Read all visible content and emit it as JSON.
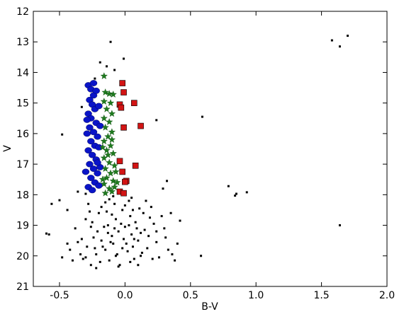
{
  "chart_data": {
    "type": "scatter",
    "title": "",
    "xlabel": "B-V",
    "ylabel": "V",
    "xlim": [
      -0.7,
      2.0
    ],
    "ylim": [
      21,
      12
    ],
    "y_inverted": true,
    "grid": false,
    "legend": "none",
    "xticks": [
      "-0.5",
      "0.0",
      "0.5",
      "1.0",
      "1.5",
      "2.0"
    ],
    "xtick_values": [
      -0.5,
      0.0,
      0.5,
      1.0,
      1.5,
      2.0
    ],
    "yticks": [
      "12",
      "13",
      "14",
      "15",
      "16",
      "17",
      "18",
      "19",
      "20",
      "21"
    ],
    "ytick_values": [
      12,
      13,
      14,
      15,
      16,
      17,
      18,
      19,
      20,
      21
    ],
    "series": [
      {
        "marker": "square-small",
        "color": "#000000",
        "points": [
          [
            -0.19,
            13.67
          ],
          [
            -0.11,
            13.0
          ],
          [
            -0.01,
            13.55
          ],
          [
            -0.08,
            13.92
          ],
          [
            -0.14,
            13.8
          ],
          [
            -0.23,
            14.2
          ],
          [
            -0.27,
            14.5
          ],
          [
            -0.33,
            15.13
          ],
          [
            -0.48,
            16.03
          ],
          [
            -0.28,
            17.72
          ],
          [
            -0.36,
            17.9
          ],
          [
            -0.3,
            17.97
          ],
          [
            0.24,
            15.56
          ],
          [
            0.59,
            15.45
          ],
          [
            0.32,
            17.55
          ],
          [
            0.29,
            17.8
          ],
          [
            0.79,
            17.72
          ],
          [
            0.84,
            18.03
          ],
          [
            0.93,
            17.92
          ],
          [
            0.85,
            17.97
          ],
          [
            1.58,
            12.95
          ],
          [
            1.64,
            13.15
          ],
          [
            1.7,
            12.8
          ],
          [
            1.64,
            19.0
          ],
          [
            0.58,
            20.0
          ],
          [
            -0.56,
            18.3
          ],
          [
            -0.5,
            18.18
          ],
          [
            -0.44,
            18.5
          ],
          [
            -0.58,
            19.3
          ],
          [
            -0.44,
            19.6
          ],
          [
            -0.48,
            20.05
          ],
          [
            -0.4,
            20.15
          ],
          [
            -0.34,
            19.95
          ],
          [
            -0.32,
            20.1
          ],
          [
            -0.6,
            19.27
          ],
          [
            -0.28,
            18.3
          ],
          [
            -0.3,
            18.8
          ],
          [
            -0.26,
            19.05
          ],
          [
            -0.33,
            19.45
          ],
          [
            -0.22,
            19.95
          ],
          [
            -0.26,
            20.3
          ],
          [
            -0.3,
            20.05
          ],
          [
            -0.18,
            18.4
          ],
          [
            -0.21,
            19.2
          ],
          [
            -0.17,
            19.7
          ],
          [
            -0.12,
            18.15
          ],
          [
            -0.14,
            18.55
          ],
          [
            -0.13,
            19.0
          ],
          [
            -0.1,
            19.35
          ],
          [
            -0.15,
            19.8
          ],
          [
            -0.12,
            20.15
          ],
          [
            -0.08,
            18.3
          ],
          [
            -0.07,
            18.8
          ],
          [
            -0.05,
            19.2
          ],
          [
            -0.09,
            19.6
          ],
          [
            -0.06,
            19.95
          ],
          [
            -0.04,
            20.3
          ],
          [
            -0.02,
            18.5
          ],
          [
            0.0,
            19.05
          ],
          [
            -0.01,
            19.45
          ],
          [
            0.02,
            19.85
          ],
          [
            0.03,
            18.2
          ],
          [
            0.04,
            18.7
          ],
          [
            0.05,
            19.3
          ],
          [
            0.06,
            19.7
          ],
          [
            0.07,
            20.1
          ],
          [
            0.08,
            18.9
          ],
          [
            0.1,
            19.5
          ],
          [
            0.12,
            20.0
          ],
          [
            0.14,
            18.6
          ],
          [
            0.15,
            19.15
          ],
          [
            0.17,
            19.75
          ],
          [
            0.2,
            18.4
          ],
          [
            0.22,
            18.95
          ],
          [
            0.24,
            19.55
          ],
          [
            0.26,
            20.05
          ],
          [
            0.3,
            19.1
          ],
          [
            0.33,
            19.8
          ],
          [
            0.38,
            20.15
          ],
          [
            0.42,
            18.85
          ],
          [
            0.35,
            18.6
          ],
          [
            -0.2,
            18.6
          ],
          [
            -0.24,
            19.4
          ],
          [
            -0.19,
            20.2
          ],
          [
            -0.16,
            19.05
          ],
          [
            -0.11,
            19.55
          ],
          [
            -0.07,
            20.0
          ],
          [
            -0.03,
            18.95
          ],
          [
            0.01,
            19.6
          ],
          [
            0.04,
            20.2
          ],
          [
            0.09,
            19.1
          ],
          [
            0.11,
            18.45
          ],
          [
            0.13,
            19.9
          ],
          [
            0.18,
            19.35
          ],
          [
            0.21,
            20.1
          ],
          [
            -0.29,
            19.7
          ],
          [
            -0.25,
            18.9
          ],
          [
            -0.15,
            18.25
          ],
          [
            -0.09,
            18.05
          ],
          [
            0.0,
            18.35
          ],
          [
            0.06,
            18.5
          ],
          [
            0.16,
            18.2
          ],
          [
            0.28,
            18.7
          ],
          [
            0.31,
            19.4
          ],
          [
            0.36,
            19.95
          ],
          [
            -0.38,
            19.1
          ],
          [
            -0.36,
            19.55
          ],
          [
            -0.42,
            19.8
          ],
          [
            -0.22,
            20.4
          ],
          [
            -0.05,
            20.35
          ],
          [
            0.1,
            20.3
          ],
          [
            -0.13,
            19.25
          ],
          [
            -0.02,
            19.75
          ],
          [
            0.07,
            19.45
          ],
          [
            0.19,
            18.75
          ],
          [
            -0.18,
            19.5
          ],
          [
            -0.08,
            19.1
          ],
          [
            0.03,
            19.0
          ],
          [
            0.12,
            19.25
          ],
          [
            -0.27,
            18.55
          ],
          [
            -0.23,
            19.75
          ],
          [
            -0.1,
            18.65
          ],
          [
            0.05,
            18.1
          ],
          [
            0.24,
            19.2
          ],
          [
            0.4,
            19.6
          ]
        ]
      },
      {
        "marker": "circle",
        "color": "#0a14c8",
        "points": [
          [
            -0.28,
            14.42
          ],
          [
            -0.26,
            14.55
          ],
          [
            -0.24,
            14.75
          ],
          [
            -0.27,
            14.9
          ],
          [
            -0.25,
            15.05
          ],
          [
            -0.23,
            15.2
          ],
          [
            -0.28,
            15.35
          ],
          [
            -0.26,
            15.5
          ],
          [
            -0.22,
            15.65
          ],
          [
            -0.27,
            15.8
          ],
          [
            -0.24,
            15.95
          ],
          [
            -0.21,
            16.1
          ],
          [
            -0.26,
            16.25
          ],
          [
            -0.23,
            16.4
          ],
          [
            -0.28,
            16.55
          ],
          [
            -0.25,
            16.7
          ],
          [
            -0.22,
            16.85
          ],
          [
            -0.27,
            17.0
          ],
          [
            -0.24,
            17.15
          ],
          [
            -0.21,
            17.3
          ],
          [
            -0.26,
            17.45
          ],
          [
            -0.23,
            17.6
          ],
          [
            -0.28,
            17.75
          ],
          [
            -0.25,
            17.85
          ],
          [
            -0.22,
            14.6
          ],
          [
            -0.2,
            15.1
          ],
          [
            -0.19,
            15.75
          ],
          [
            -0.2,
            16.45
          ],
          [
            -0.19,
            17.1
          ],
          [
            -0.2,
            17.7
          ],
          [
            -0.29,
            16.0
          ],
          [
            -0.3,
            17.25
          ],
          [
            -0.29,
            15.55
          ],
          [
            -0.21,
            16.95
          ],
          [
            -0.24,
            14.35
          ]
        ]
      },
      {
        "marker": "star",
        "color": "#1e7a1e",
        "points": [
          [
            -0.16,
            14.12
          ],
          [
            -0.15,
            14.65
          ],
          [
            -0.12,
            14.7
          ],
          [
            -0.09,
            14.72
          ],
          [
            -0.16,
            14.95
          ],
          [
            -0.11,
            15.0
          ],
          [
            -0.14,
            15.2
          ],
          [
            -0.1,
            15.35
          ],
          [
            -0.16,
            15.5
          ],
          [
            -0.12,
            15.62
          ],
          [
            -0.15,
            15.8
          ],
          [
            -0.1,
            15.95
          ],
          [
            -0.13,
            16.1
          ],
          [
            -0.16,
            16.25
          ],
          [
            -0.11,
            16.4
          ],
          [
            -0.14,
            16.55
          ],
          [
            -0.09,
            16.65
          ],
          [
            -0.16,
            16.8
          ],
          [
            -0.12,
            16.95
          ],
          [
            -0.08,
            17.05
          ],
          [
            -0.15,
            17.15
          ],
          [
            -0.11,
            17.3
          ],
          [
            -0.14,
            17.45
          ],
          [
            -0.09,
            17.55
          ],
          [
            -0.16,
            17.65
          ],
          [
            -0.12,
            17.8
          ],
          [
            -0.15,
            17.95
          ],
          [
            -0.1,
            17.9
          ],
          [
            -0.06,
            17.6
          ],
          [
            -0.07,
            17.25
          ],
          [
            -0.17,
            17.5
          ],
          [
            -0.13,
            16.7
          ],
          [
            -0.1,
            16.2
          ],
          [
            -0.08,
            17.75
          ],
          [
            -0.17,
            16.45
          ]
        ]
      },
      {
        "marker": "square",
        "color": "#d21414",
        "points": [
          [
            -0.02,
            14.35
          ],
          [
            -0.01,
            14.65
          ],
          [
            -0.04,
            15.05
          ],
          [
            -0.03,
            15.15
          ],
          [
            0.07,
            15.0
          ],
          [
            -0.01,
            15.8
          ],
          [
            0.12,
            15.75
          ],
          [
            -0.04,
            16.9
          ],
          [
            -0.02,
            17.25
          ],
          [
            0.08,
            17.05
          ],
          [
            0.01,
            17.55
          ],
          [
            -0.04,
            17.9
          ],
          [
            -0.01,
            17.95
          ],
          [
            0.0,
            17.58
          ]
        ]
      }
    ]
  }
}
